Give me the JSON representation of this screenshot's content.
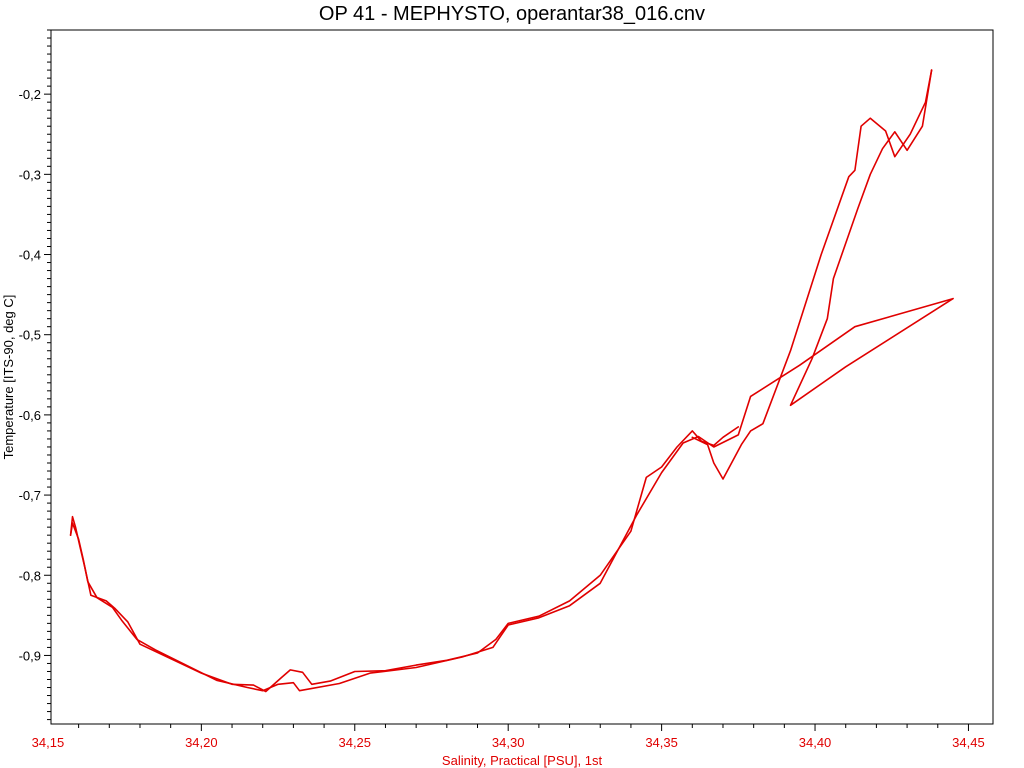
{
  "chart_data": {
    "type": "line",
    "title": "OP 41 - MEPHYSTO, operantar38_016.cnv",
    "xlabel": "Salinity, Practical [PSU], 1st",
    "ylabel": "Temperature [ITS-90, deg C]",
    "xlim": [
      34.151,
      34.458
    ],
    "ylim": [
      -0.9855,
      -0.12
    ],
    "x_ticks": [
      34.15,
      34.2,
      34.25,
      34.3,
      34.35,
      34.4,
      34.45
    ],
    "x_tick_labels": [
      "34,15",
      "34,20",
      "34,25",
      "34,30",
      "34,35",
      "34,40",
      "34,45"
    ],
    "y_ticks": [
      -0.2,
      -0.3,
      -0.4,
      -0.5,
      -0.6,
      -0.7,
      -0.8,
      -0.9
    ],
    "y_tick_labels": [
      "-0,2",
      "-0,3",
      "-0,4",
      "-0,5",
      "-0,6",
      "-0,7",
      "-0,8",
      "-0,9"
    ],
    "grid": false,
    "line_color": "#e00000",
    "axis_text_color_x": "#e00000",
    "series": [
      {
        "points": [
          [
            34.1574,
            -0.75
          ],
          [
            34.158,
            -0.727
          ],
          [
            34.159,
            -0.74
          ],
          [
            34.1605,
            -0.765
          ],
          [
            34.162,
            -0.79
          ],
          [
            34.164,
            -0.825
          ],
          [
            34.169,
            -0.832
          ],
          [
            34.172,
            -0.842
          ],
          [
            34.176,
            -0.858
          ],
          [
            34.18,
            -0.886
          ],
          [
            34.19,
            -0.904
          ],
          [
            34.2,
            -0.922
          ],
          [
            34.21,
            -0.936
          ],
          [
            34.217,
            -0.937
          ],
          [
            34.221,
            -0.945
          ],
          [
            34.226,
            -0.928
          ],
          [
            34.229,
            -0.918
          ],
          [
            34.233,
            -0.921
          ],
          [
            34.236,
            -0.936
          ],
          [
            34.242,
            -0.932
          ],
          [
            34.25,
            -0.92
          ],
          [
            34.26,
            -0.919
          ],
          [
            34.27,
            -0.912
          ],
          [
            34.28,
            -0.906
          ],
          [
            34.29,
            -0.897
          ],
          [
            34.296,
            -0.88
          ],
          [
            34.3,
            -0.86
          ],
          [
            34.31,
            -0.851
          ],
          [
            34.32,
            -0.832
          ],
          [
            34.33,
            -0.8
          ],
          [
            34.34,
            -0.745
          ],
          [
            34.345,
            -0.678
          ],
          [
            34.35,
            -0.665
          ],
          [
            34.355,
            -0.64
          ],
          [
            34.36,
            -0.62
          ],
          [
            34.363,
            -0.633
          ],
          [
            34.367,
            -0.638
          ],
          [
            34.37,
            -0.628
          ],
          [
            34.375,
            -0.615
          ]
        ]
      },
      {
        "points": [
          [
            34.1574,
            -0.75
          ],
          [
            34.158,
            -0.735
          ],
          [
            34.16,
            -0.755
          ],
          [
            34.1615,
            -0.78
          ],
          [
            34.163,
            -0.808
          ],
          [
            34.166,
            -0.828
          ],
          [
            34.171,
            -0.84
          ],
          [
            34.174,
            -0.856
          ],
          [
            34.179,
            -0.88
          ],
          [
            34.185,
            -0.893
          ],
          [
            34.195,
            -0.912
          ],
          [
            34.205,
            -0.931
          ],
          [
            34.215,
            -0.94
          ],
          [
            34.22,
            -0.944
          ],
          [
            34.225,
            -0.936
          ],
          [
            34.23,
            -0.934
          ],
          [
            34.232,
            -0.944
          ],
          [
            34.245,
            -0.935
          ],
          [
            34.255,
            -0.922
          ],
          [
            34.27,
            -0.915
          ],
          [
            34.285,
            -0.902
          ],
          [
            34.295,
            -0.89
          ],
          [
            34.3,
            -0.862
          ],
          [
            34.31,
            -0.853
          ],
          [
            34.32,
            -0.838
          ],
          [
            34.33,
            -0.81
          ],
          [
            34.342,
            -0.724
          ],
          [
            34.35,
            -0.672
          ],
          [
            34.357,
            -0.635
          ],
          [
            34.362,
            -0.627
          ],
          [
            34.367,
            -0.64
          ],
          [
            34.375,
            -0.625
          ],
          [
            34.379,
            -0.577
          ],
          [
            34.395,
            -0.538
          ],
          [
            34.413,
            -0.49
          ],
          [
            34.445,
            -0.455
          ],
          [
            34.41,
            -0.54
          ],
          [
            34.392,
            -0.588
          ],
          [
            34.399,
            -0.53
          ],
          [
            34.404,
            -0.48
          ],
          [
            34.406,
            -0.43
          ],
          [
            34.414,
            -0.342
          ],
          [
            34.418,
            -0.3
          ],
          [
            34.422,
            -0.268
          ],
          [
            34.426,
            -0.247
          ],
          [
            34.43,
            -0.27
          ],
          [
            34.435,
            -0.24
          ],
          [
            34.438,
            -0.17
          ]
        ]
      },
      {
        "points": [
          [
            34.438,
            -0.17
          ],
          [
            34.436,
            -0.21
          ],
          [
            34.431,
            -0.25
          ],
          [
            34.426,
            -0.278
          ],
          [
            34.423,
            -0.246
          ],
          [
            34.418,
            -0.23
          ],
          [
            34.415,
            -0.24
          ],
          [
            34.413,
            -0.295
          ],
          [
            34.411,
            -0.303
          ],
          [
            34.402,
            -0.4
          ],
          [
            34.392,
            -0.52
          ],
          [
            34.383,
            -0.611
          ],
          [
            34.379,
            -0.62
          ],
          [
            34.376,
            -0.637
          ],
          [
            34.37,
            -0.68
          ],
          [
            34.367,
            -0.66
          ],
          [
            34.365,
            -0.637
          ],
          [
            34.36,
            -0.628
          ]
        ]
      }
    ]
  }
}
